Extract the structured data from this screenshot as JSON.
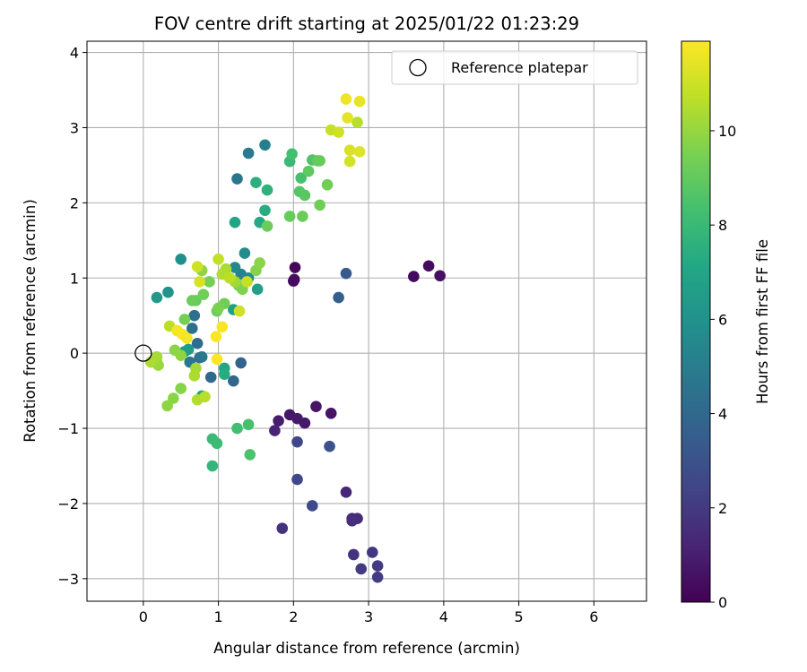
{
  "chart_data": {
    "type": "scatter",
    "title": "FOV centre drift starting at 2025/01/22 01:23:29",
    "xlabel": "Angular distance from reference (arcmin)",
    "ylabel": "Rotation from reference (arcmin)",
    "xlim": [
      -0.75,
      6.7
    ],
    "ylim": [
      -3.3,
      4.15
    ],
    "xticks": [
      0,
      1,
      2,
      3,
      4,
      5,
      6
    ],
    "yticks": [
      -3,
      -2,
      -1,
      0,
      1,
      2,
      3,
      4
    ],
    "grid": true,
    "legend": {
      "position": "top-right",
      "entries": [
        "Reference platepar"
      ]
    },
    "reference_point": {
      "name": "Reference platepar",
      "x": 0,
      "y": 0
    },
    "colorbar": {
      "label": "Hours from first FF file",
      "colormap": "viridis",
      "range": [
        0,
        11.9
      ],
      "ticks": [
        0,
        2,
        4,
        6,
        8,
        10
      ]
    },
    "points": [
      {
        "x": 2.02,
        "y": 1.14,
        "h": 0.2
      },
      {
        "x": 2.0,
        "y": 0.96,
        "h": 0.3
      },
      {
        "x": 2.01,
        "y": 0.98,
        "h": 0.4
      },
      {
        "x": 3.6,
        "y": 1.02,
        "h": 0.3
      },
      {
        "x": 3.8,
        "y": 1.16,
        "h": 0.4
      },
      {
        "x": 3.95,
        "y": 1.03,
        "h": 0.5
      },
      {
        "x": 2.3,
        "y": -0.71,
        "h": 0.6
      },
      {
        "x": 2.5,
        "y": -0.8,
        "h": 0.6
      },
      {
        "x": 1.95,
        "y": -0.82,
        "h": 0.7
      },
      {
        "x": 2.05,
        "y": -0.87,
        "h": 0.8
      },
      {
        "x": 2.15,
        "y": -0.93,
        "h": 0.8
      },
      {
        "x": 1.8,
        "y": -0.9,
        "h": 0.9
      },
      {
        "x": 1.75,
        "y": -1.03,
        "h": 1.2
      },
      {
        "x": 2.7,
        "y": -1.85,
        "h": 1.3
      },
      {
        "x": 2.78,
        "y": -2.2,
        "h": 1.4
      },
      {
        "x": 2.85,
        "y": -2.2,
        "h": 1.5
      },
      {
        "x": 2.78,
        "y": -2.23,
        "h": 1.6
      },
      {
        "x": 1.85,
        "y": -2.33,
        "h": 1.7
      },
      {
        "x": 2.8,
        "y": -2.68,
        "h": 1.8
      },
      {
        "x": 3.05,
        "y": -2.65,
        "h": 1.9
      },
      {
        "x": 3.12,
        "y": -2.83,
        "h": 2.0
      },
      {
        "x": 2.9,
        "y": -2.87,
        "h": 2.0
      },
      {
        "x": 3.12,
        "y": -2.98,
        "h": 2.1
      },
      {
        "x": 2.05,
        "y": -1.18,
        "h": 2.5
      },
      {
        "x": 2.05,
        "y": -1.68,
        "h": 2.6
      },
      {
        "x": 2.25,
        "y": -2.03,
        "h": 2.7
      },
      {
        "x": 2.48,
        "y": -1.24,
        "h": 3.0
      },
      {
        "x": 2.7,
        "y": 1.06,
        "h": 3.4
      },
      {
        "x": 2.6,
        "y": 0.74,
        "h": 3.6
      },
      {
        "x": 1.3,
        "y": -0.13,
        "h": 3.8
      },
      {
        "x": 1.2,
        "y": -0.37,
        "h": 3.9
      },
      {
        "x": 0.9,
        "y": -0.32,
        "h": 4.0
      },
      {
        "x": 0.72,
        "y": 0.13,
        "h": 4.2
      },
      {
        "x": 0.75,
        "y": -0.06,
        "h": 4.3
      },
      {
        "x": 0.65,
        "y": 0.33,
        "h": 4.4
      },
      {
        "x": 0.68,
        "y": 0.5,
        "h": 4.4
      },
      {
        "x": 0.62,
        "y": -0.12,
        "h": 4.6
      },
      {
        "x": 0.78,
        "y": -0.05,
        "h": 4.7
      },
      {
        "x": 1.25,
        "y": 2.32,
        "h": 4.6
      },
      {
        "x": 1.4,
        "y": 2.66,
        "h": 4.8
      },
      {
        "x": 1.62,
        "y": 2.77,
        "h": 5.1
      },
      {
        "x": 1.3,
        "y": 1.05,
        "h": 5.3
      },
      {
        "x": 1.22,
        "y": 1.14,
        "h": 5.5
      },
      {
        "x": 1.4,
        "y": 1.0,
        "h": 5.6
      },
      {
        "x": 1.35,
        "y": 1.33,
        "h": 5.7
      },
      {
        "x": 0.5,
        "y": 1.25,
        "h": 5.9
      },
      {
        "x": 0.33,
        "y": 0.81,
        "h": 6.0
      },
      {
        "x": 0.18,
        "y": 0.74,
        "h": 6.3
      },
      {
        "x": 0.55,
        "y": 0.02,
        "h": 6.4
      },
      {
        "x": 0.6,
        "y": 0.05,
        "h": 6.5
      },
      {
        "x": 1.2,
        "y": 0.58,
        "h": 6.6
      },
      {
        "x": 1.52,
        "y": 0.85,
        "h": 6.7
      },
      {
        "x": 1.22,
        "y": 1.74,
        "h": 7.0
      },
      {
        "x": 1.55,
        "y": 1.74,
        "h": 7.2
      },
      {
        "x": 1.62,
        "y": 1.9,
        "h": 7.4
      },
      {
        "x": 1.5,
        "y": 2.27,
        "h": 7.5
      },
      {
        "x": 1.65,
        "y": 2.17,
        "h": 7.6
      },
      {
        "x": 0.78,
        "y": -0.57,
        "h": 7.0
      },
      {
        "x": 1.08,
        "y": -0.2,
        "h": 7.1
      },
      {
        "x": 1.08,
        "y": -0.28,
        "h": 7.3
      },
      {
        "x": 0.92,
        "y": -1.5,
        "h": 7.8
      },
      {
        "x": 0.92,
        "y": -1.14,
        "h": 8.0
      },
      {
        "x": 0.98,
        "y": -1.2,
        "h": 8.1
      },
      {
        "x": 1.25,
        "y": -1.0,
        "h": 8.3
      },
      {
        "x": 1.4,
        "y": -0.95,
        "h": 8.4
      },
      {
        "x": 1.42,
        "y": -1.35,
        "h": 8.5
      },
      {
        "x": 1.95,
        "y": 2.55,
        "h": 8.0
      },
      {
        "x": 1.98,
        "y": 2.65,
        "h": 8.3
      },
      {
        "x": 2.1,
        "y": 2.33,
        "h": 8.4
      },
      {
        "x": 2.25,
        "y": 2.57,
        "h": 8.6
      },
      {
        "x": 2.08,
        "y": 2.15,
        "h": 8.7
      },
      {
        "x": 2.15,
        "y": 2.1,
        "h": 8.8
      },
      {
        "x": 2.2,
        "y": 2.42,
        "h": 8.9
      },
      {
        "x": 2.32,
        "y": 2.56,
        "h": 9.0
      },
      {
        "x": 2.35,
        "y": 2.56,
        "h": 9.1
      },
      {
        "x": 2.45,
        "y": 2.24,
        "h": 9.3
      },
      {
        "x": 1.95,
        "y": 1.82,
        "h": 9.1
      },
      {
        "x": 2.12,
        "y": 1.82,
        "h": 9.2
      },
      {
        "x": 2.35,
        "y": 1.97,
        "h": 9.3
      },
      {
        "x": 1.65,
        "y": 1.69,
        "h": 9.2
      },
      {
        "x": 0.7,
        "y": 0.7,
        "h": 9.1
      },
      {
        "x": 0.65,
        "y": 0.7,
        "h": 9.2
      },
      {
        "x": 0.8,
        "y": 0.78,
        "h": 9.3
      },
      {
        "x": 0.88,
        "y": 0.95,
        "h": 9.4
      },
      {
        "x": 0.98,
        "y": 0.56,
        "h": 9.2
      },
      {
        "x": 1.08,
        "y": 0.66,
        "h": 9.3
      },
      {
        "x": 1.0,
        "y": 0.6,
        "h": 9.5
      },
      {
        "x": 1.27,
        "y": 0.9,
        "h": 9.5
      },
      {
        "x": 1.32,
        "y": 0.85,
        "h": 9.6
      },
      {
        "x": 1.5,
        "y": 1.1,
        "h": 9.7
      },
      {
        "x": 1.55,
        "y": 1.2,
        "h": 9.8
      },
      {
        "x": 0.78,
        "y": 1.1,
        "h": 9.9
      },
      {
        "x": 0.55,
        "y": 0.45,
        "h": 9.4
      },
      {
        "x": 0.42,
        "y": 0.04,
        "h": 9.8
      },
      {
        "x": 0.5,
        "y": -0.03,
        "h": 9.9
      },
      {
        "x": 0.5,
        "y": -0.47,
        "h": 9.7
      },
      {
        "x": 0.4,
        "y": -0.6,
        "h": 9.8
      },
      {
        "x": 0.32,
        "y": -0.7,
        "h": 9.9
      },
      {
        "x": 0.18,
        "y": -0.12,
        "h": 10.0
      },
      {
        "x": 0.2,
        "y": -0.16,
        "h": 10.1
      },
      {
        "x": 0.18,
        "y": -0.05,
        "h": 10.3
      },
      {
        "x": 0.1,
        "y": -0.12,
        "h": 10.4
      },
      {
        "x": 0.7,
        "y": -0.2,
        "h": 10.3
      },
      {
        "x": 0.68,
        "y": -0.3,
        "h": 10.4
      },
      {
        "x": 0.72,
        "y": -0.62,
        "h": 10.5
      },
      {
        "x": 0.82,
        "y": -0.58,
        "h": 10.6
      },
      {
        "x": 1.22,
        "y": 0.95,
        "h": 10.2
      },
      {
        "x": 1.1,
        "y": 1.12,
        "h": 10.4
      },
      {
        "x": 1.05,
        "y": 1.05,
        "h": 10.5
      },
      {
        "x": 1.15,
        "y": 1.0,
        "h": 10.7
      },
      {
        "x": 1.0,
        "y": 1.25,
        "h": 10.8
      },
      {
        "x": 1.38,
        "y": 0.95,
        "h": 10.9
      },
      {
        "x": 1.28,
        "y": 0.56,
        "h": 11.0
      },
      {
        "x": 0.35,
        "y": 0.36,
        "h": 10.7
      },
      {
        "x": 0.72,
        "y": 1.15,
        "h": 11.0
      },
      {
        "x": 0.75,
        "y": 0.95,
        "h": 11.2
      },
      {
        "x": 2.85,
        "y": 3.07,
        "h": 10.6
      },
      {
        "x": 2.5,
        "y": 2.97,
        "h": 10.9
      },
      {
        "x": 2.6,
        "y": 2.94,
        "h": 11.0
      },
      {
        "x": 2.75,
        "y": 2.55,
        "h": 11.1
      },
      {
        "x": 2.75,
        "y": 2.7,
        "h": 11.2
      },
      {
        "x": 2.88,
        "y": 2.68,
        "h": 11.3
      },
      {
        "x": 2.72,
        "y": 3.13,
        "h": 11.4
      },
      {
        "x": 2.88,
        "y": 3.35,
        "h": 11.5
      },
      {
        "x": 2.7,
        "y": 3.38,
        "h": 11.6
      },
      {
        "x": 0.45,
        "y": 0.3,
        "h": 11.7
      },
      {
        "x": 0.52,
        "y": 0.25,
        "h": 11.8
      },
      {
        "x": 0.58,
        "y": 0.2,
        "h": 11.7
      },
      {
        "x": 1.05,
        "y": 0.35,
        "h": 11.8
      },
      {
        "x": 0.97,
        "y": 0.22,
        "h": 11.8
      },
      {
        "x": 0.98,
        "y": -0.08,
        "h": 11.9
      }
    ]
  }
}
